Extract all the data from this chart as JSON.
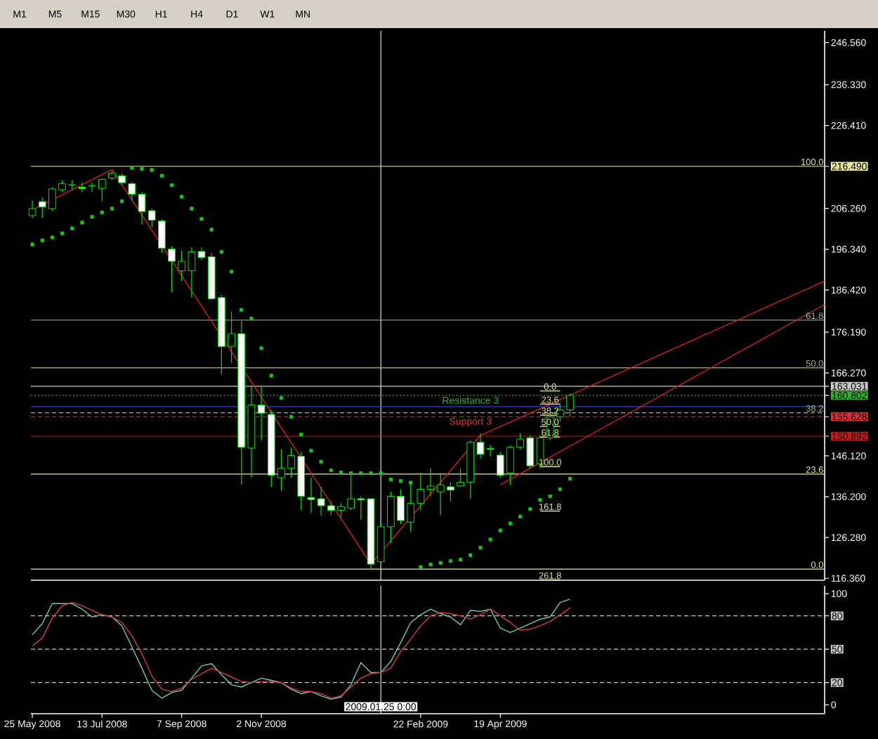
{
  "chart_data": [
    {
      "type": "candlestick",
      "color": "#00e000",
      "x": [
        "2008-05-25",
        "2008-06-01",
        "2008-06-08",
        "2008-06-15",
        "2008-06-22",
        "2008-06-29",
        "2008-07-06",
        "2008-07-13",
        "2008-07-20",
        "2008-07-27",
        "2008-08-03",
        "2008-08-10",
        "2008-08-17",
        "2008-08-24",
        "2008-08-31",
        "2008-09-07",
        "2008-09-14",
        "2008-09-21",
        "2008-09-28",
        "2008-10-05",
        "2008-10-12",
        "2008-10-19",
        "2008-10-26",
        "2008-11-02",
        "2008-11-09",
        "2008-11-16",
        "2008-11-23",
        "2008-11-30",
        "2008-12-07",
        "2008-12-14",
        "2008-12-21",
        "2008-12-28",
        "2009-01-04",
        "2009-01-11",
        "2009-01-18",
        "2009-01-25",
        "2009-02-01",
        "2009-02-08",
        "2009-02-15",
        "2009-02-22",
        "2009-03-01",
        "2009-03-08",
        "2009-03-15",
        "2009-03-22",
        "2009-03-29",
        "2009-04-05",
        "2009-04-12",
        "2009-04-19",
        "2009-04-26",
        "2009-05-03",
        "2009-05-10",
        "2009-05-17",
        "2009-05-24",
        "2009-05-31",
        "2009-06-07"
      ],
      "ohlc": [
        [
          204.5,
          208.2,
          204.0,
          206.2
        ],
        [
          207.9,
          208.9,
          204.0,
          206.6
        ],
        [
          206.2,
          211.4,
          205.7,
          211.0
        ],
        [
          210.8,
          213.1,
          210.2,
          212.3
        ],
        [
          211.9,
          213.1,
          210.8,
          212.0
        ],
        [
          211.4,
          212.5,
          210.2,
          211.1
        ],
        [
          211.7,
          212.5,
          210.2,
          211.8
        ],
        [
          211.1,
          213.6,
          208.0,
          213.3
        ],
        [
          213.6,
          215.3,
          213.1,
          214.8
        ],
        [
          214.2,
          214.8,
          211.9,
          212.5
        ],
        [
          212.3,
          212.7,
          208.2,
          209.7
        ],
        [
          209.7,
          210.2,
          202.3,
          205.5
        ],
        [
          205.7,
          206.2,
          201.7,
          203.4
        ],
        [
          203.2,
          203.6,
          195.4,
          196.6
        ],
        [
          196.4,
          197.1,
          185.8,
          193.4
        ],
        [
          191.1,
          196.0,
          188.6,
          193.4
        ],
        [
          191.1,
          196.8,
          184.6,
          195.7
        ],
        [
          195.8,
          196.8,
          193.7,
          194.3
        ],
        [
          194.5,
          195.4,
          184.1,
          184.3
        ],
        [
          184.6,
          185.2,
          165.9,
          172.7
        ],
        [
          172.7,
          181.2,
          168.7,
          175.8
        ],
        [
          175.8,
          178.9,
          139.1,
          148.2
        ],
        [
          148.0,
          163.0,
          140.8,
          158.5
        ],
        [
          158.5,
          163.0,
          149.9,
          156.5
        ],
        [
          156.2,
          157.3,
          138.6,
          141.4
        ],
        [
          140.8,
          147.7,
          137.6,
          143.1
        ],
        [
          143.1,
          148.2,
          140.8,
          146.2
        ],
        [
          146.0,
          147.1,
          132.9,
          136.3
        ],
        [
          136.0,
          140.8,
          132.3,
          135.5
        ],
        [
          135.7,
          138.6,
          131.7,
          134.0
        ],
        [
          134.0,
          135.1,
          131.7,
          132.9
        ],
        [
          132.9,
          134.6,
          131.2,
          133.8
        ],
        [
          133.4,
          141.4,
          132.9,
          135.7
        ],
        [
          135.7,
          136.3,
          130.6,
          135.4
        ],
        [
          135.7,
          135.7,
          118.6,
          119.8
        ],
        [
          120.4,
          130.0,
          120.4,
          128.9
        ],
        [
          128.9,
          137.4,
          124.9,
          136.3
        ],
        [
          136.3,
          138.0,
          129.5,
          130.4
        ],
        [
          130.0,
          139.1,
          127.7,
          134.6
        ],
        [
          134.6,
          142.0,
          132.9,
          138.0
        ],
        [
          138.0,
          143.1,
          136.3,
          138.8
        ],
        [
          137.4,
          142.0,
          131.7,
          139.1
        ],
        [
          138.6,
          139.7,
          135.1,
          137.8
        ],
        [
          138.8,
          143.1,
          138.6,
          139.7
        ],
        [
          139.7,
          149.9,
          135.7,
          149.4
        ],
        [
          149.4,
          151.6,
          145.4,
          146.5
        ],
        [
          147.9,
          148.8,
          146.0,
          147.7
        ],
        [
          146.3,
          147.1,
          140.8,
          141.4
        ],
        [
          142.0,
          148.6,
          139.1,
          148.2
        ],
        [
          148.2,
          151.6,
          147.7,
          150.2
        ],
        [
          150.5,
          151.1,
          143.1,
          143.7
        ],
        [
          144.2,
          151.1,
          143.1,
          150.5
        ],
        [
          150.5,
          156.8,
          149.9,
          155.6
        ],
        [
          155.6,
          159.0,
          154.5,
          157.3
        ],
        [
          157.3,
          161.3,
          155.6,
          160.8
        ]
      ],
      "series": [
        {
          "type": "scatter",
          "color": "#20c020",
          "marker": "square",
          "values": [
            197.5,
            198.5,
            199.2,
            200.2,
            201.4,
            202.8,
            204.2,
            205.3,
            206.2,
            208.0,
            216.1,
            215.9,
            215.6,
            214.2,
            211.9,
            209.1,
            206.2,
            203.7,
            201.1,
            195.7,
            190.9,
            181.6,
            179.5,
            172.3,
            165.6,
            160.2,
            155.6,
            151.3,
            147.4,
            144.7,
            142.6,
            142.1,
            141.9,
            141.9,
            141.9,
            141.9,
            140.4,
            140.0,
            139.6,
            119.1,
            119.7,
            120.1,
            120.6,
            120.9,
            122.0,
            123.8,
            125.8,
            128.0,
            129.7,
            131.4,
            133.2,
            135.4,
            136.3,
            138.0,
            140.6
          ]
        },
        {
          "type": "line",
          "color": "#d02020",
          "x": [
            "2008-05-24",
            "2008-07-20",
            "2009-01-18",
            "2009-04-05",
            "2009-12-03"
          ],
          "values": [
            205.7,
            215.7,
            119.8,
            151.1,
            188.6
          ]
        },
        {
          "type": "line",
          "color": "#d02020",
          "x": [
            "2009-04-19",
            "2009-12-03"
          ],
          "values": [
            139.1,
            182.9
          ]
        },
        {
          "type": "line",
          "color": "#e8e8a0",
          "x": [
            "2009-05-17",
            "2009-05-31"
          ],
          "values": [
            161.9,
            161.9
          ]
        },
        {
          "type": "line",
          "color": "#e8e8a0",
          "x": [
            "2009-05-17",
            "2009-05-31"
          ],
          "values": [
            158.7,
            158.7
          ]
        },
        {
          "type": "line",
          "color": "#e8e8a0",
          "x": [
            "2009-05-17",
            "2009-05-31"
          ],
          "values": [
            156.0,
            156.0
          ]
        },
        {
          "type": "line",
          "color": "#e8e8a0",
          "x": [
            "2009-05-17",
            "2009-05-31"
          ],
          "values": [
            153.3,
            153.3
          ]
        },
        {
          "type": "line",
          "color": "#e8e8a0",
          "x": [
            "2009-05-17",
            "2009-05-31"
          ],
          "values": [
            150.7,
            150.7
          ]
        },
        {
          "type": "line",
          "color": "#e8e8a0",
          "x": [
            "2009-05-17",
            "2009-05-31"
          ],
          "values": [
            143.5,
            143.5
          ]
        },
        {
          "type": "line",
          "color": "#e8e8a0",
          "x": [
            "2009-05-17",
            "2009-05-31"
          ],
          "values": [
            132.7,
            132.7
          ]
        },
        {
          "type": "line",
          "color": "#e8e8a0",
          "x": [
            "2009-05-17",
            "2009-05-31"
          ],
          "values": [
            116.0,
            116.0
          ]
        }
      ],
      "xlim": [
        "2008-05-24",
        "2009-12-03"
      ],
      "ylim": [
        115.9,
        249.4
      ],
      "yticks": [
        {
          "value": 246.56,
          "label": "246.560"
        },
        {
          "value": 236.33,
          "label": "236.330"
        },
        {
          "value": 226.41,
          "label": "226.410"
        },
        {
          "value": 216.49,
          "label": "216.490"
        },
        {
          "value": 206.26,
          "label": "206.260"
        },
        {
          "value": 196.34,
          "label": "196.340"
        },
        {
          "value": 186.42,
          "label": "186.420"
        },
        {
          "value": 176.19,
          "label": "176.190"
        },
        {
          "value": 166.27,
          "label": "166.270"
        },
        {
          "value": 163.031,
          "label": "163.031"
        },
        {
          "value": 160.802,
          "label": "160.802"
        },
        {
          "value": 155.628,
          "label": "155.628"
        },
        {
          "value": 150.892,
          "label": "150.892"
        },
        {
          "value": 146.12,
          "label": "146.120"
        },
        {
          "value": 136.2,
          "label": "136.200"
        },
        {
          "value": 126.28,
          "label": "126.280"
        },
        {
          "value": 116.36,
          "label": "116.360"
        }
      ],
      "ref_lines": [
        {
          "axis": "x",
          "value": "2009-01-25",
          "color": "#e0e0e0"
        },
        {
          "axis": "y",
          "value": 216.49,
          "color": "#e8e8a0"
        },
        {
          "axis": "y",
          "value": 179.1,
          "color": "#b0b088"
        },
        {
          "axis": "y",
          "value": 167.5,
          "color": "#b0b088"
        },
        {
          "axis": "y",
          "value": 163.031,
          "color": "#c8c8c8"
        },
        {
          "axis": "y",
          "value": 160.802,
          "color": "#30b030",
          "line_style": "dotted"
        },
        {
          "axis": "y",
          "value": 158.1,
          "color": "#2848d8"
        },
        {
          "axis": "y",
          "value": 156.6,
          "color": "#b0b088",
          "line_style": "dashed"
        },
        {
          "axis": "y",
          "value": 155.628,
          "color": "#e03030",
          "line_style": "dashed"
        },
        {
          "axis": "y",
          "value": 150.892,
          "color": "#c81818"
        },
        {
          "axis": "y",
          "value": 141.7,
          "color": "#e8e8a0"
        },
        {
          "axis": "y",
          "value": 118.6,
          "color": "#e8e8a0"
        }
      ],
      "annotations": [
        "M1",
        "M5",
        "M15",
        "M30",
        "H1",
        "H4",
        "D1",
        "W1",
        "MN",
        {
          "text": "100.0",
          "x": "2009-12-03",
          "y": 216.49
        },
        {
          "text": "61.8",
          "x": "2009-12-03",
          "y": 179.1
        },
        {
          "text": "50.0",
          "x": "2009-12-03",
          "y": 167.5
        },
        {
          "text": "38.2",
          "x": "2009-12-03",
          "y": 156.6
        },
        {
          "text": "23.6",
          "x": "2009-12-03",
          "y": 141.7
        },
        {
          "text": "0.0",
          "x": "2009-12-03",
          "y": 118.6
        },
        {
          "text": "Resistance 3",
          "x": "2009-03-29",
          "y": 160.802
        },
        {
          "text": "Support 3",
          "x": "2009-03-29",
          "y": 155.628
        },
        {
          "text": "0.0",
          "x": "2009-05-24",
          "y": 161.9
        },
        {
          "text": "23.6",
          "x": "2009-05-24",
          "y": 158.7
        },
        {
          "text": "38.2",
          "x": "2009-05-24",
          "y": 156.0
        },
        {
          "text": "50.0",
          "x": "2009-05-24",
          "y": 153.3
        },
        {
          "text": "61.8",
          "x": "2009-05-24",
          "y": 150.7
        },
        {
          "text": "100.0",
          "x": "2009-05-24",
          "y": 143.5
        },
        {
          "text": "161.8",
          "x": "2009-05-24",
          "y": 132.7
        },
        {
          "text": "261.8",
          "x": "2009-05-24",
          "y": 116.0
        }
      ]
    },
    {
      "type": "line",
      "x": [
        "2008-05-25",
        "2008-06-01",
        "2008-06-08",
        "2008-06-15",
        "2008-06-22",
        "2008-06-29",
        "2008-07-06",
        "2008-07-13",
        "2008-07-20",
        "2008-07-27",
        "2008-08-03",
        "2008-08-10",
        "2008-08-17",
        "2008-08-24",
        "2008-08-31",
        "2008-09-07",
        "2008-09-14",
        "2008-09-21",
        "2008-09-28",
        "2008-10-05",
        "2008-10-12",
        "2008-10-19",
        "2008-10-26",
        "2008-11-02",
        "2008-11-09",
        "2008-11-16",
        "2008-11-23",
        "2008-11-30",
        "2008-12-07",
        "2008-12-14",
        "2008-12-21",
        "2008-12-28",
        "2009-01-04",
        "2009-01-11",
        "2009-01-18",
        "2009-01-25",
        "2009-02-01",
        "2009-02-08",
        "2009-02-15",
        "2009-02-22",
        "2009-03-01",
        "2009-03-08",
        "2009-03-15",
        "2009-03-22",
        "2009-03-29",
        "2009-04-05",
        "2009-04-12",
        "2009-04-19",
        "2009-04-26",
        "2009-05-03",
        "2009-05-10",
        "2009-05-17",
        "2009-05-24",
        "2009-05-31",
        "2009-06-07"
      ],
      "series": [
        {
          "color": "#70c8b8",
          "values": [
            63,
            73,
            91,
            91,
            91,
            86,
            79,
            81,
            79,
            71,
            52,
            33,
            13,
            6,
            11,
            13,
            24,
            35,
            37,
            27,
            18,
            16,
            20,
            24,
            22,
            20,
            14,
            10,
            12,
            8,
            5,
            7,
            18,
            38,
            29,
            29,
            39,
            56,
            74,
            81,
            86,
            82,
            79,
            72,
            85,
            84,
            86,
            69,
            65,
            69,
            73,
            77,
            79,
            92,
            95
          ]
        },
        {
          "color": "#d04040",
          "values": [
            53,
            60,
            78,
            89,
            92,
            89,
            85,
            81,
            79,
            74,
            62,
            46,
            26,
            14,
            12,
            15,
            23,
            28,
            33,
            29,
            25,
            21,
            20,
            21,
            21,
            20,
            15,
            12,
            12,
            10,
            6,
            8,
            16,
            24,
            28,
            29,
            33,
            48,
            59,
            71,
            80,
            83,
            82,
            80,
            77,
            81,
            86,
            80,
            74,
            67,
            68,
            71,
            75,
            81,
            87
          ]
        }
      ],
      "xlim": [
        "2008-05-24",
        "2009-12-03"
      ],
      "ylim": [
        -8,
        107
      ],
      "xticks": [
        {
          "value": "2008-05-25",
          "label": "25 May 2008"
        },
        {
          "value": "2008-07-13",
          "label": "13 Jul 2008"
        },
        {
          "value": "2008-09-07",
          "label": "7 Sep 2008"
        },
        {
          "value": "2008-11-02",
          "label": "2 Nov 2008"
        },
        {
          "value": "2009-02-22",
          "label": "22 Feb 2009"
        },
        {
          "value": "2009-04-19",
          "label": "19 Apr 2009"
        }
      ],
      "yticks": [
        0,
        20,
        50,
        80,
        100
      ],
      "ref_lines": [
        {
          "axis": "x",
          "value": "2009-01-25",
          "color": "#e0e0e0",
          "label": "2009.01.25 0:00"
        },
        {
          "axis": "y",
          "value": 80,
          "color": "#c8c8c8",
          "line_style": "dashed"
        },
        {
          "axis": "y",
          "value": 50,
          "color": "#c8c8c8",
          "line_style": "dashed"
        },
        {
          "axis": "y",
          "value": 20,
          "color": "#c8c8c8",
          "line_style": "dashed"
        }
      ]
    }
  ]
}
